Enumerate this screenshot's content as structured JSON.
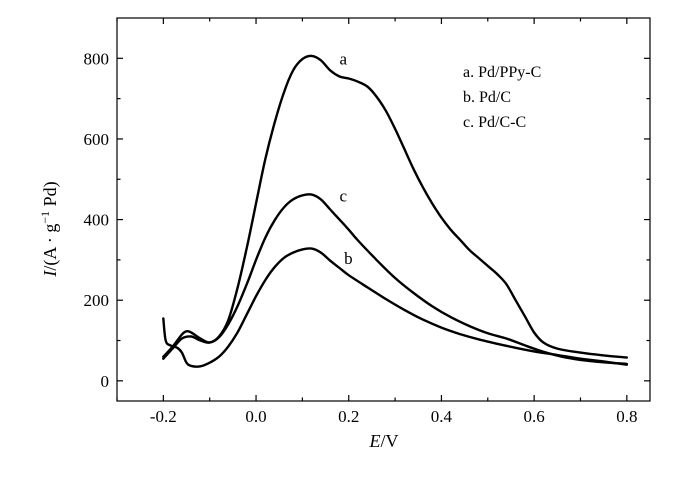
{
  "chart_data": {
    "type": "line",
    "xlabel": "E/V",
    "xlabel_italic": "E",
    "xlabel_rest": "/V",
    "ylabel_italic": "I",
    "ylabel_rest": "/(A · g",
    "ylabel_sup": "−1",
    "ylabel_end": " Pd)",
    "xlim": [
      -0.3,
      0.85
    ],
    "ylim": [
      -50,
      900
    ],
    "xticks": [
      -0.2,
      0.0,
      0.2,
      0.4,
      0.6,
      0.8
    ],
    "xtick_labels": [
      "-0.2",
      "0.0",
      "0.2",
      "0.4",
      "0.6",
      "0.8"
    ],
    "xminor": [
      -0.3,
      -0.1,
      0.1,
      0.3,
      0.5,
      0.7
    ],
    "yticks": [
      0,
      200,
      400,
      600,
      800
    ],
    "ytick_labels": [
      "0",
      "200",
      "400",
      "600",
      "800"
    ],
    "yminor": [
      100,
      300,
      500,
      700
    ],
    "legend": [
      "a. Pd/PPy-C",
      "b. Pd/C",
      "c. Pd/C-C"
    ],
    "legend_position": "top-right",
    "series": [
      {
        "name": "a",
        "points": [
          [
            -0.2,
            55
          ],
          [
            -0.18,
            80
          ],
          [
            -0.16,
            105
          ],
          [
            -0.14,
            110
          ],
          [
            -0.12,
            100
          ],
          [
            -0.1,
            95
          ],
          [
            -0.08,
            110
          ],
          [
            -0.06,
            150
          ],
          [
            -0.04,
            230
          ],
          [
            -0.02,
            330
          ],
          [
            0.0,
            440
          ],
          [
            0.02,
            550
          ],
          [
            0.04,
            640
          ],
          [
            0.06,
            715
          ],
          [
            0.08,
            770
          ],
          [
            0.1,
            798
          ],
          [
            0.12,
            806
          ],
          [
            0.14,
            795
          ],
          [
            0.16,
            770
          ],
          [
            0.18,
            755
          ],
          [
            0.2,
            750
          ],
          [
            0.22,
            742
          ],
          [
            0.24,
            730
          ],
          [
            0.26,
            705
          ],
          [
            0.28,
            670
          ],
          [
            0.3,
            625
          ],
          [
            0.32,
            575
          ],
          [
            0.34,
            525
          ],
          [
            0.36,
            480
          ],
          [
            0.38,
            440
          ],
          [
            0.4,
            405
          ],
          [
            0.42,
            375
          ],
          [
            0.44,
            350
          ],
          [
            0.46,
            325
          ],
          [
            0.48,
            305
          ],
          [
            0.5,
            285
          ],
          [
            0.52,
            265
          ],
          [
            0.54,
            240
          ],
          [
            0.56,
            200
          ],
          [
            0.58,
            160
          ],
          [
            0.6,
            120
          ],
          [
            0.62,
            95
          ],
          [
            0.65,
            80
          ],
          [
            0.7,
            70
          ],
          [
            0.75,
            63
          ],
          [
            0.8,
            58
          ]
        ]
      },
      {
        "name": "b",
        "points": [
          [
            -0.2,
            155
          ],
          [
            -0.195,
            100
          ],
          [
            -0.185,
            88
          ],
          [
            -0.17,
            82
          ],
          [
            -0.16,
            70
          ],
          [
            -0.15,
            45
          ],
          [
            -0.14,
            37
          ],
          [
            -0.12,
            36
          ],
          [
            -0.1,
            45
          ],
          [
            -0.08,
            60
          ],
          [
            -0.06,
            85
          ],
          [
            -0.04,
            120
          ],
          [
            -0.02,
            165
          ],
          [
            0.0,
            210
          ],
          [
            0.02,
            250
          ],
          [
            0.04,
            282
          ],
          [
            0.06,
            305
          ],
          [
            0.08,
            318
          ],
          [
            0.1,
            326
          ],
          [
            0.12,
            328
          ],
          [
            0.14,
            318
          ],
          [
            0.16,
            298
          ],
          [
            0.18,
            280
          ],
          [
            0.2,
            262
          ],
          [
            0.24,
            232
          ],
          [
            0.28,
            203
          ],
          [
            0.32,
            176
          ],
          [
            0.36,
            152
          ],
          [
            0.4,
            132
          ],
          [
            0.44,
            116
          ],
          [
            0.48,
            103
          ],
          [
            0.52,
            92
          ],
          [
            0.56,
            82
          ],
          [
            0.6,
            73
          ],
          [
            0.65,
            64
          ],
          [
            0.7,
            55
          ],
          [
            0.75,
            48
          ],
          [
            0.8,
            40
          ]
        ]
      },
      {
        "name": "c",
        "points": [
          [
            -0.2,
            60
          ],
          [
            -0.18,
            85
          ],
          [
            -0.16,
            115
          ],
          [
            -0.15,
            123
          ],
          [
            -0.14,
            120
          ],
          [
            -0.12,
            105
          ],
          [
            -0.1,
            95
          ],
          [
            -0.08,
            108
          ],
          [
            -0.06,
            140
          ],
          [
            -0.04,
            185
          ],
          [
            -0.02,
            240
          ],
          [
            0.0,
            300
          ],
          [
            0.02,
            355
          ],
          [
            0.04,
            398
          ],
          [
            0.06,
            430
          ],
          [
            0.08,
            450
          ],
          [
            0.1,
            460
          ],
          [
            0.12,
            462
          ],
          [
            0.14,
            450
          ],
          [
            0.16,
            425
          ],
          [
            0.18,
            400
          ],
          [
            0.2,
            375
          ],
          [
            0.22,
            348
          ],
          [
            0.26,
            300
          ],
          [
            0.3,
            255
          ],
          [
            0.34,
            218
          ],
          [
            0.38,
            185
          ],
          [
            0.42,
            158
          ],
          [
            0.46,
            136
          ],
          [
            0.5,
            118
          ],
          [
            0.54,
            105
          ],
          [
            0.58,
            88
          ],
          [
            0.62,
            72
          ],
          [
            0.66,
            60
          ],
          [
            0.7,
            52
          ],
          [
            0.75,
            46
          ],
          [
            0.8,
            42
          ]
        ]
      }
    ],
    "curve_labels": [
      {
        "series": "a",
        "text": "a",
        "x": 0.18,
        "y": 785
      },
      {
        "series": "c",
        "text": "c",
        "x": 0.18,
        "y": 445
      },
      {
        "series": "b",
        "text": "b",
        "x": 0.19,
        "y": 290
      }
    ]
  }
}
